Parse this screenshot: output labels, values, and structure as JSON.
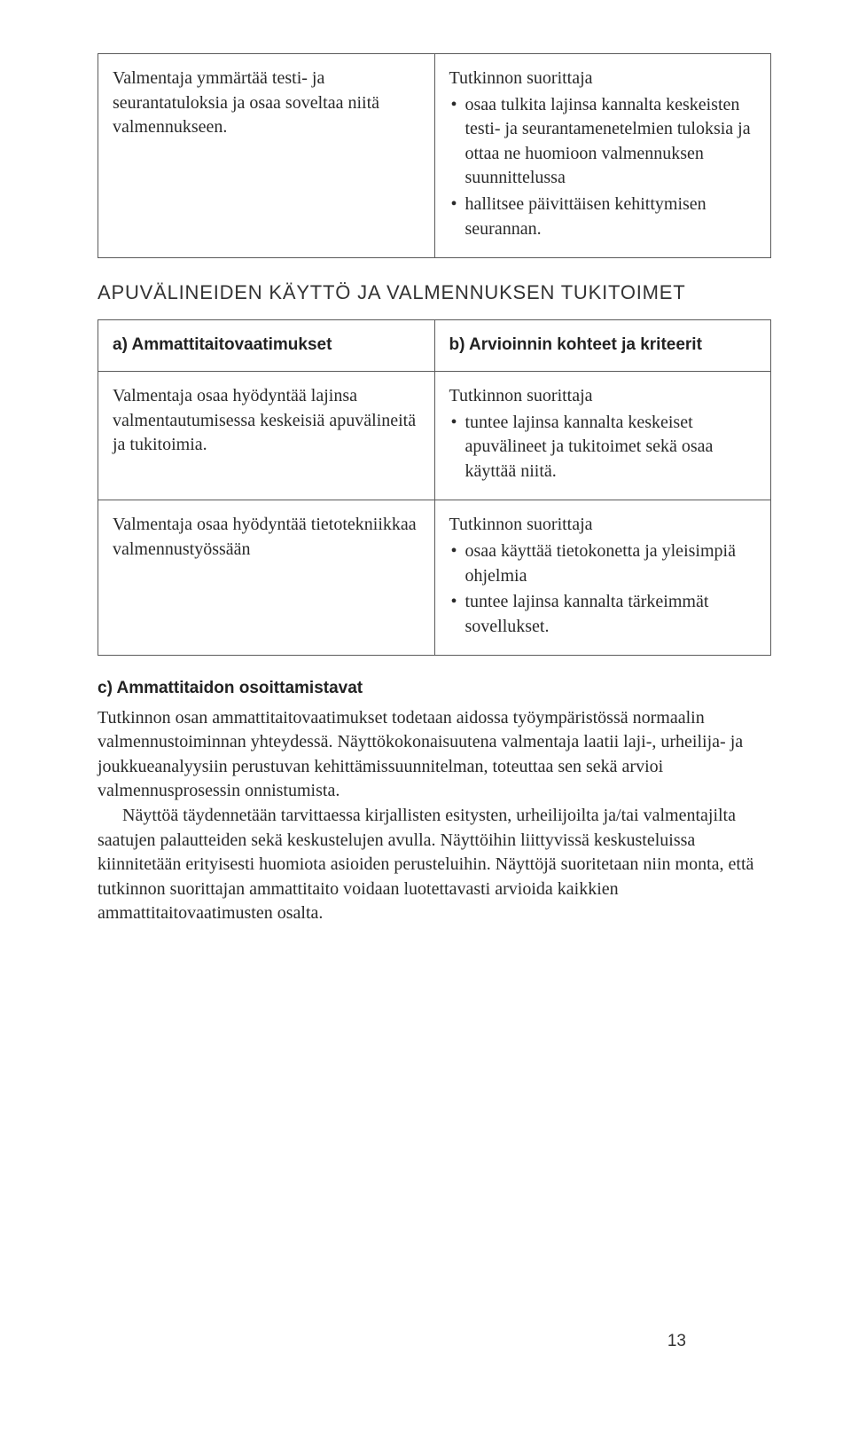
{
  "colors": {
    "page_bg": "#ffffff",
    "text": "#2a2a2a",
    "border": "#5a5a5a",
    "heading": "#333333"
  },
  "typography": {
    "body_family": "Georgia, 'Times New Roman', serif",
    "heading_family": "Arial, Helvetica, sans-serif",
    "body_size_pt": 15,
    "heading_size_pt": 16,
    "bold_label_size_pt": 14
  },
  "table1": {
    "left": {
      "para": "Valmentaja ymmärtää testi- ja seurantatuloksia ja osaa soveltaa niitä valmennukseen."
    },
    "right": {
      "lead": "Tutkinnon suorittaja",
      "bullets": [
        "osaa tulkita lajinsa kannalta keskeisten testi- ja seurantamenetelmien tuloksia ja ottaa ne huomioon valmennuksen suunnittelussa",
        "hallitsee päivittäisen kehittymisen seurannan."
      ]
    }
  },
  "section_heading": "APUVÄLINEIDEN KÄYTTÖ JA VALMENNUKSEN TUKITOIMET",
  "table2": {
    "head_left": "a) Ammattitaitovaatimukset",
    "head_right": "b) Arvioinnin kohteet ja kriteerit",
    "row1": {
      "left": "Valmentaja osaa hyödyntää lajinsa valmentautumisessa keskeisiä apuvälineitä ja tukitoimia.",
      "right_lead": "Tutkinnon suorittaja",
      "right_bullets": [
        "tuntee lajinsa kannalta keskeiset apuvälineet ja tukitoimet sekä osaa käyttää niitä."
      ]
    },
    "row2": {
      "left": "Valmentaja osaa hyödyntää tietotekniikkaa valmennustyössään",
      "right_lead": "Tutkinnon suorittaja",
      "right_bullets": [
        "osaa käyttää tietokonetta ja yleisimpiä ohjelmia",
        "tuntee lajinsa kannalta tärkeimmät sovellukset."
      ]
    }
  },
  "section_c": {
    "heading": "c) Ammattitaidon osoittamistavat",
    "para1": "Tutkinnon osan ammattitaitovaatimukset todetaan aidossa työympäristössä normaalin valmennustoiminnan yhteydessä. Näyttökokonaisuutena valmentaja laatii laji-, urheilija- ja joukkueanalyysiin perustuvan kehittämissuunnitelman, toteuttaa sen sekä arvioi valmennusprosessin onnistumista.",
    "para2": "Näyttöä täydennetään tarvittaessa kirjallisten esitysten, urheilijoilta ja/tai valmentajilta saatujen palautteiden sekä keskustelujen avulla. Näyttöihin liittyvissä keskusteluissa kiinnitetään erityisesti huomiota asioiden perusteluihin. Näyttöjä suoritetaan niin monta, että tutkinnon suorittajan ammattitaito voidaan luotettavasti arvioida kaikkien ammattitaitovaatimusten osalta."
  },
  "page_number": "13"
}
